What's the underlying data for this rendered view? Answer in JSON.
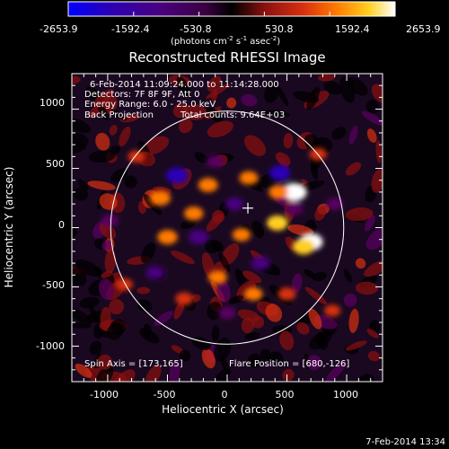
{
  "colorbar": {
    "tick_labels": [
      "-2653.9",
      "-1592.4",
      "-530.8",
      "530.8",
      "1592.4",
      "2653.9"
    ],
    "tick_values": [
      -2653.9,
      -1592.4,
      -530.8,
      530.8,
      1592.4,
      2653.9
    ],
    "range": [
      -2653.9,
      2653.9
    ],
    "unit_base": "(photons cm",
    "unit_sup1": "-2",
    "unit_mid": " s",
    "unit_sup2": "-1",
    "unit_mid2": " asec",
    "unit_sup3": "-2",
    "unit_end": ")",
    "palette": [
      "#0000ff",
      "#2a00b8",
      "#4a0080",
      "#5a0060",
      "#000000",
      "#8a1010",
      "#d83010",
      "#ff7a00",
      "#ffd020",
      "#ffffff"
    ]
  },
  "title": "Reconstructed RHESSI Image",
  "info": {
    "line1": "6-Feb-2014 11:09:24.000 to 11:14:28.000",
    "line2": "Detectors: 7F 8F 9F, Att 0",
    "line3": "Energy Range: 6.0 - 25.0 keV",
    "line4a": "Back Projection",
    "line4b": "Total counts: 9.64E+03",
    "spin_axis": "Spin Axis = [173,165]",
    "flare_position": "Flare Position = [680,-126]"
  },
  "axes": {
    "xlabel": "Heliocentric X (arcsec)",
    "ylabel": "Heliocentric Y (arcsec)",
    "xticks": [
      "-1000",
      "-500",
      "0",
      "500",
      "1000"
    ],
    "yticks": [
      "1000",
      "500",
      "0",
      "-500",
      "-1000"
    ],
    "x_tick_values": [
      -1000,
      -500,
      0,
      500,
      1000
    ],
    "y_tick_values": [
      1000,
      500,
      0,
      -500,
      -1000
    ],
    "xlim": [
      -1300,
      1300
    ],
    "ylim": [
      -1300,
      1300
    ]
  },
  "disk": {
    "center": [
      0,
      0
    ],
    "radius": 975
  },
  "spin_axis_marker": [
    173,
    165
  ],
  "footer": {
    "date": "7-Feb-2014 13:34"
  },
  "image_blobs": [
    {
      "x": 560,
      "y": 300,
      "v": 2653.9
    },
    {
      "x": 700,
      "y": -120,
      "v": 2400
    },
    {
      "x": 640,
      "y": -160,
      "v": 2000
    },
    {
      "x": 420,
      "y": 40,
      "v": 1800
    },
    {
      "x": 430,
      "y": 300,
      "v": 1500
    },
    {
      "x": -560,
      "y": 250,
      "v": 1700
    },
    {
      "x": -500,
      "y": -80,
      "v": 1600
    },
    {
      "x": -280,
      "y": 120,
      "v": 1400
    },
    {
      "x": -160,
      "y": 360,
      "v": 1500
    },
    {
      "x": 180,
      "y": 420,
      "v": 1300
    },
    {
      "x": 120,
      "y": -60,
      "v": 1200
    },
    {
      "x": -80,
      "y": -420,
      "v": 1300
    },
    {
      "x": 220,
      "y": -560,
      "v": 1200
    },
    {
      "x": -360,
      "y": -600,
      "v": 1100
    },
    {
      "x": 500,
      "y": -560,
      "v": 1100
    },
    {
      "x": 760,
      "y": 620,
      "v": 1000
    },
    {
      "x": -760,
      "y": 600,
      "v": 900
    },
    {
      "x": -860,
      "y": -480,
      "v": 900
    },
    {
      "x": 880,
      "y": -700,
      "v": 800
    },
    {
      "x": -420,
      "y": 440,
      "v": -2000
    },
    {
      "x": 440,
      "y": 460,
      "v": -1800
    },
    {
      "x": -240,
      "y": -80,
      "v": -1600
    },
    {
      "x": 280,
      "y": -300,
      "v": -1400
    },
    {
      "x": 60,
      "y": 200,
      "v": -1200
    },
    {
      "x": -600,
      "y": -380,
      "v": -1300
    },
    {
      "x": 560,
      "y": 160,
      "v": -1100
    },
    {
      "x": -100,
      "y": 560,
      "v": -1100
    },
    {
      "x": 0,
      "y": -720,
      "v": -1000
    },
    {
      "x": 900,
      "y": 200,
      "v": -900
    },
    {
      "x": -980,
      "y": 60,
      "v": -900
    }
  ]
}
